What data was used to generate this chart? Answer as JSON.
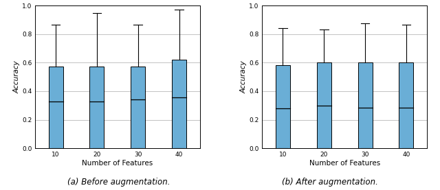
{
  "subplot_a": {
    "xlabel": "Number of Features",
    "ylabel": "Accuracy",
    "xticks": [
      10,
      20,
      30,
      40
    ],
    "ylim": [
      0.0,
      1.0
    ],
    "yticks": [
      0.0,
      0.2,
      0.4,
      0.6,
      0.8,
      1.0
    ],
    "boxes": [
      {
        "x": 1,
        "q1": 0.0,
        "median": 0.33,
        "q3": 0.575,
        "whislo": 0.0,
        "whishi": 0.865
      },
      {
        "x": 2,
        "q1": 0.0,
        "median": 0.33,
        "q3": 0.575,
        "whislo": 0.0,
        "whishi": 0.95
      },
      {
        "x": 3,
        "q1": 0.0,
        "median": 0.34,
        "q3": 0.575,
        "whislo": 0.0,
        "whishi": 0.865
      },
      {
        "x": 4,
        "q1": 0.0,
        "median": 0.355,
        "q3": 0.62,
        "whislo": 0.0,
        "whishi": 0.975
      }
    ],
    "bar_color": "#6aaed6",
    "grid_color": "#aaaaaa"
  },
  "subplot_b": {
    "xlabel": "Number of Features",
    "ylabel": "Accuracy",
    "xticks": [
      10,
      20,
      30,
      40
    ],
    "ylim": [
      0.0,
      1.0
    ],
    "yticks": [
      0.0,
      0.2,
      0.4,
      0.6,
      0.8,
      1.0
    ],
    "boxes": [
      {
        "x": 1,
        "q1": 0.0,
        "median": 0.28,
        "q3": 0.585,
        "whislo": 0.0,
        "whishi": 0.845
      },
      {
        "x": 2,
        "q1": 0.0,
        "median": 0.3,
        "q3": 0.6,
        "whislo": 0.0,
        "whishi": 0.835
      },
      {
        "x": 3,
        "q1": 0.0,
        "median": 0.285,
        "q3": 0.6,
        "whislo": 0.0,
        "whishi": 0.875
      },
      {
        "x": 4,
        "q1": 0.0,
        "median": 0.285,
        "q3": 0.6,
        "whislo": 0.0,
        "whishi": 0.865
      }
    ],
    "bar_color": "#6aaed6",
    "grid_color": "#aaaaaa"
  },
  "fig_label_a": "(a) Before augmentation.",
  "fig_label_b": "(b) After augmentation.",
  "background_color": "#ffffff",
  "box_width": 0.35,
  "xlabel_a": [
    10,
    20,
    30,
    40
  ],
  "xlabel_b": [
    10,
    20,
    30,
    40
  ]
}
